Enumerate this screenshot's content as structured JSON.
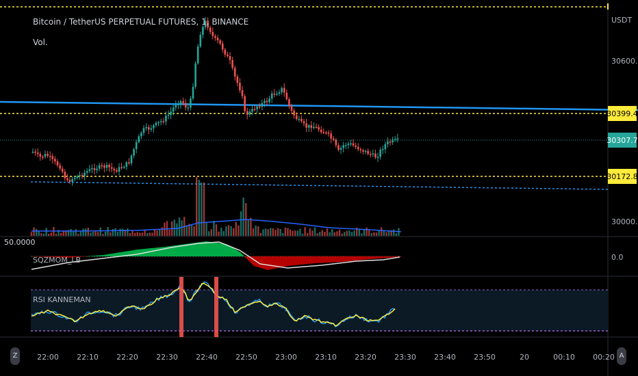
{
  "header": {
    "symbol_title": "Bitcoin / TetherUS PERPETUAL FUTURES, 1, BINANCE",
    "volume_label": "Vol."
  },
  "axis": {
    "currency": "USDT",
    "price_ticks": [
      "30600.0",
      "30000.0"
    ],
    "mom_zero": "0.0",
    "left_value": "50.0000",
    "time_ticks": [
      "22:00",
      "22:10",
      "22:20",
      "22:30",
      "22:40",
      "22:50",
      "23:00",
      "23:10",
      "23:20",
      "23:30",
      "23:40",
      "23:50",
      "20",
      "00:10",
      "00:20"
    ]
  },
  "badges": {
    "upper_level": "30399.4",
    "last_price": "30307.7",
    "lower_level": "30172.8"
  },
  "panes": {
    "momentum_label": "SQZMOM_LB",
    "rsi_label": "RSI KANNEMAN"
  },
  "buttons": {
    "left_corner": "Z",
    "right_corner": "A"
  },
  "colors": {
    "up": "#26a69a",
    "down": "#ef5350",
    "level_yellow": "#ffeb3b",
    "trend_blue": "#2196f3",
    "rsi_yellow": "#ffeb3b",
    "rsi_blue": "#2196f3",
    "badge_yellow": "#ffeb3b",
    "badge_teal": "#26a69a"
  },
  "chart_data": {
    "type": "candlestick",
    "price_levels": [
      30399.4,
      30307.7,
      30172.8
    ],
    "x_start": "21:55",
    "x_end": "23:31"
  }
}
